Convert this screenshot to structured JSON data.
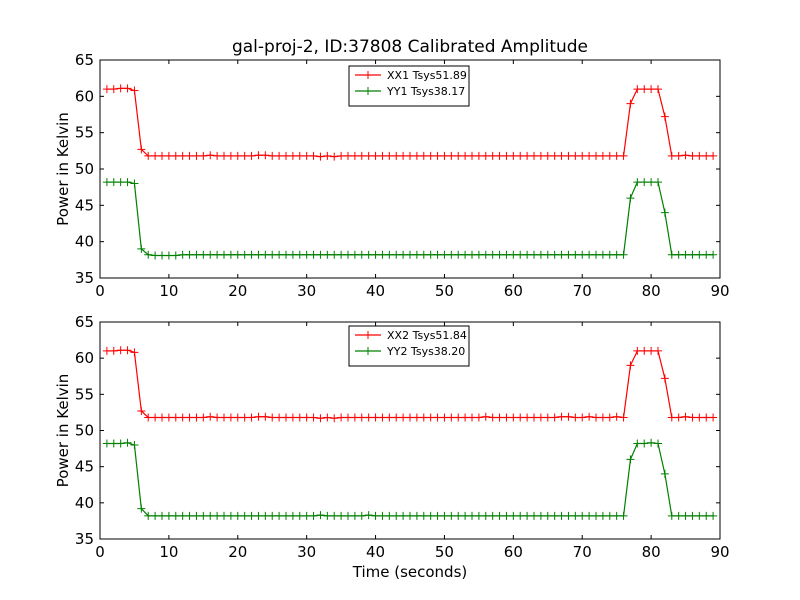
{
  "figure": {
    "title": "gal-proj-2, ID:37808 Calibrated Amplitude"
  },
  "chart_data": [
    {
      "type": "line",
      "title": "gal-proj-2, ID:37808 Calibrated Amplitude",
      "xlabel": "",
      "ylabel": "Power in Kelvin",
      "xlim": [
        0,
        90
      ],
      "ylim": [
        35,
        65
      ],
      "xticks": [
        0,
        10,
        20,
        30,
        40,
        50,
        60,
        70,
        80,
        90
      ],
      "yticks": [
        35,
        40,
        45,
        50,
        55,
        60,
        65
      ],
      "grid": false,
      "legend_position": "top-center",
      "x": [
        1,
        2,
        3,
        4,
        5,
        6,
        7,
        8,
        9,
        10,
        11,
        12,
        13,
        14,
        15,
        16,
        17,
        18,
        19,
        20,
        21,
        22,
        23,
        24,
        25,
        26,
        27,
        28,
        29,
        30,
        31,
        32,
        33,
        34,
        35,
        36,
        37,
        38,
        39,
        40,
        41,
        42,
        43,
        44,
        45,
        46,
        47,
        48,
        49,
        50,
        51,
        52,
        53,
        54,
        55,
        56,
        57,
        58,
        59,
        60,
        61,
        62,
        63,
        64,
        65,
        66,
        67,
        68,
        69,
        70,
        71,
        72,
        73,
        74,
        75,
        76,
        77,
        78,
        79,
        80,
        81,
        82,
        83,
        84,
        85,
        86,
        87,
        88,
        89
      ],
      "series": [
        {
          "name": "XX1 Tsys51.89",
          "color": "#ff0000",
          "values": [
            61.0,
            61.0,
            61.1,
            61.1,
            60.8,
            52.7,
            51.8,
            51.8,
            51.8,
            51.8,
            51.8,
            51.8,
            51.8,
            51.8,
            51.8,
            51.9,
            51.8,
            51.8,
            51.8,
            51.8,
            51.8,
            51.8,
            51.9,
            51.9,
            51.8,
            51.8,
            51.8,
            51.8,
            51.8,
            51.8,
            51.8,
            51.7,
            51.8,
            51.7,
            51.8,
            51.8,
            51.8,
            51.8,
            51.8,
            51.8,
            51.8,
            51.8,
            51.8,
            51.8,
            51.8,
            51.8,
            51.8,
            51.8,
            51.8,
            51.8,
            51.8,
            51.8,
            51.8,
            51.8,
            51.8,
            51.8,
            51.8,
            51.8,
            51.8,
            51.8,
            51.8,
            51.8,
            51.8,
            51.8,
            51.8,
            51.8,
            51.8,
            51.8,
            51.8,
            51.8,
            51.8,
            51.8,
            51.8,
            51.8,
            51.8,
            51.8,
            59.0,
            61.0,
            61.0,
            61.0,
            61.0,
            57.2,
            51.8,
            51.8,
            51.9,
            51.8,
            51.8,
            51.8,
            51.8
          ]
        },
        {
          "name": "YY1 Tsys38.17",
          "color": "#008000",
          "values": [
            48.2,
            48.2,
            48.2,
            48.2,
            48.0,
            39.0,
            38.2,
            38.1,
            38.1,
            38.1,
            38.1,
            38.2,
            38.2,
            38.2,
            38.2,
            38.2,
            38.2,
            38.2,
            38.2,
            38.2,
            38.2,
            38.2,
            38.2,
            38.2,
            38.2,
            38.2,
            38.2,
            38.2,
            38.2,
            38.2,
            38.2,
            38.2,
            38.2,
            38.2,
            38.2,
            38.2,
            38.2,
            38.2,
            38.2,
            38.2,
            38.2,
            38.2,
            38.2,
            38.2,
            38.2,
            38.2,
            38.2,
            38.2,
            38.2,
            38.2,
            38.2,
            38.2,
            38.2,
            38.2,
            38.2,
            38.2,
            38.2,
            38.2,
            38.2,
            38.2,
            38.2,
            38.2,
            38.2,
            38.2,
            38.2,
            38.2,
            38.2,
            38.2,
            38.2,
            38.2,
            38.2,
            38.2,
            38.2,
            38.2,
            38.2,
            38.2,
            46.0,
            48.2,
            48.2,
            48.2,
            48.2,
            44.0,
            38.2,
            38.2,
            38.2,
            38.2,
            38.2,
            38.2,
            38.2
          ]
        }
      ]
    },
    {
      "type": "line",
      "title": "",
      "xlabel": "Time (seconds)",
      "ylabel": "Power in Kelvin",
      "xlim": [
        0,
        90
      ],
      "ylim": [
        35,
        65
      ],
      "xticks": [
        0,
        10,
        20,
        30,
        40,
        50,
        60,
        70,
        80,
        90
      ],
      "yticks": [
        35,
        40,
        45,
        50,
        55,
        60,
        65
      ],
      "grid": false,
      "legend_position": "top-center",
      "x": [
        1,
        2,
        3,
        4,
        5,
        6,
        7,
        8,
        9,
        10,
        11,
        12,
        13,
        14,
        15,
        16,
        17,
        18,
        19,
        20,
        21,
        22,
        23,
        24,
        25,
        26,
        27,
        28,
        29,
        30,
        31,
        32,
        33,
        34,
        35,
        36,
        37,
        38,
        39,
        40,
        41,
        42,
        43,
        44,
        45,
        46,
        47,
        48,
        49,
        50,
        51,
        52,
        53,
        54,
        55,
        56,
        57,
        58,
        59,
        60,
        61,
        62,
        63,
        64,
        65,
        66,
        67,
        68,
        69,
        70,
        71,
        72,
        73,
        74,
        75,
        76,
        77,
        78,
        79,
        80,
        81,
        82,
        83,
        84,
        85,
        86,
        87,
        88,
        89
      ],
      "series": [
        {
          "name": "XX2 Tsys51.84",
          "color": "#ff0000",
          "values": [
            61.0,
            61.0,
            61.1,
            61.1,
            60.8,
            52.7,
            51.8,
            51.8,
            51.8,
            51.8,
            51.8,
            51.8,
            51.8,
            51.8,
            51.8,
            51.9,
            51.8,
            51.8,
            51.8,
            51.8,
            51.8,
            51.8,
            51.9,
            51.9,
            51.8,
            51.8,
            51.8,
            51.8,
            51.8,
            51.8,
            51.8,
            51.7,
            51.8,
            51.7,
            51.8,
            51.8,
            51.8,
            51.8,
            51.8,
            51.8,
            51.8,
            51.8,
            51.8,
            51.8,
            51.8,
            51.8,
            51.8,
            51.8,
            51.8,
            51.8,
            51.8,
            51.8,
            51.8,
            51.8,
            51.8,
            51.9,
            51.8,
            51.8,
            51.8,
            51.8,
            51.8,
            51.8,
            51.8,
            51.8,
            51.8,
            51.8,
            51.9,
            51.9,
            51.8,
            51.8,
            51.9,
            51.8,
            51.8,
            51.8,
            51.9,
            51.8,
            59.0,
            61.0,
            61.0,
            61.0,
            61.0,
            57.2,
            51.8,
            51.8,
            51.9,
            51.8,
            51.8,
            51.8,
            51.8
          ]
        },
        {
          "name": "YY2 Tsys38.20",
          "color": "#008000",
          "values": [
            48.2,
            48.2,
            48.2,
            48.3,
            48.0,
            39.2,
            38.2,
            38.2,
            38.2,
            38.2,
            38.2,
            38.2,
            38.2,
            38.2,
            38.2,
            38.2,
            38.2,
            38.2,
            38.2,
            38.2,
            38.2,
            38.2,
            38.2,
            38.2,
            38.2,
            38.2,
            38.2,
            38.2,
            38.2,
            38.2,
            38.2,
            38.3,
            38.2,
            38.2,
            38.2,
            38.2,
            38.2,
            38.2,
            38.3,
            38.2,
            38.2,
            38.2,
            38.2,
            38.2,
            38.2,
            38.2,
            38.2,
            38.2,
            38.2,
            38.2,
            38.2,
            38.2,
            38.2,
            38.2,
            38.2,
            38.2,
            38.2,
            38.2,
            38.2,
            38.2,
            38.2,
            38.2,
            38.2,
            38.2,
            38.2,
            38.2,
            38.2,
            38.2,
            38.2,
            38.2,
            38.2,
            38.2,
            38.2,
            38.2,
            38.2,
            38.2,
            46.0,
            48.2,
            48.2,
            48.3,
            48.2,
            44.0,
            38.2,
            38.2,
            38.2,
            38.2,
            38.2,
            38.2,
            38.2
          ]
        }
      ]
    }
  ]
}
